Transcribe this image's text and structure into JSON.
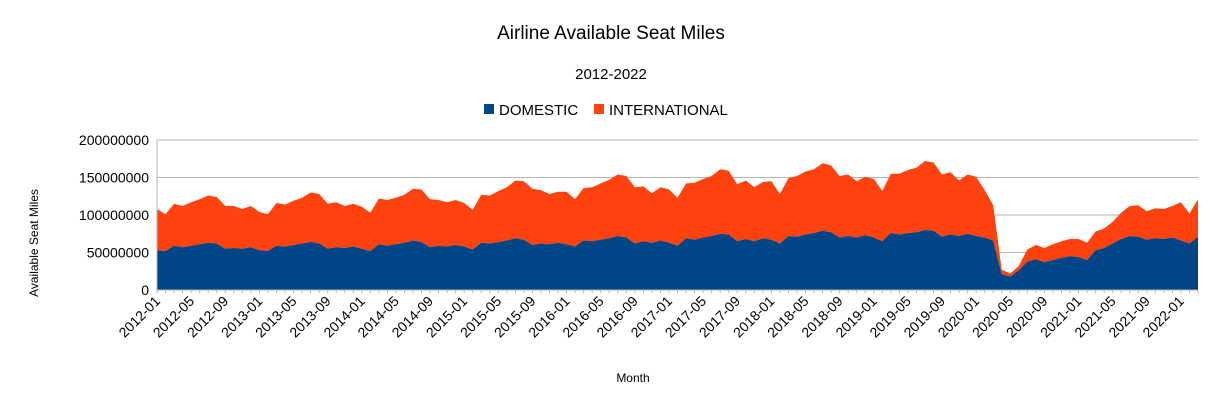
{
  "chart_data": {
    "type": "area",
    "stacked": true,
    "title": "Airline Available Seat Miles",
    "subtitle": "2012-2022",
    "xlabel": "Month",
    "ylabel": "Available Seat Miles",
    "ylim": [
      0,
      200000000
    ],
    "yticks": [
      "0",
      "50000000",
      "100000000",
      "150000000",
      "200000000"
    ],
    "grid": true,
    "legend": "top-center",
    "colors": {
      "DOMESTIC": "#004586",
      "INTERNATIONAL": "#ff420e",
      "grid": "#b3b3b3"
    },
    "x_tick_labels": [
      "2012-01",
      "2012-05",
      "2012-09",
      "2013-01",
      "2013-05",
      "2013-09",
      "2014-01",
      "2014-05",
      "2014-09",
      "2015-01",
      "2015-05",
      "2015-09",
      "2016-01",
      "2016-05",
      "2016-09",
      "2017-01",
      "2017-05",
      "2017-09",
      "2018-01",
      "2018-05",
      "2018-09",
      "2019-01",
      "2019-05",
      "2019-09",
      "2020-01",
      "2020-05",
      "2020-09",
      "2021-01",
      "2021-05",
      "2021-09",
      "2022-01"
    ],
    "x_start": "2012-01",
    "series": [
      {
        "name": "DOMESTIC",
        "values": [
          53000000,
          52000000,
          59000000,
          57000000,
          59000000,
          61000000,
          63000000,
          62000000,
          55000000,
          56000000,
          55000000,
          57000000,
          53000000,
          52000000,
          59000000,
          58000000,
          60000000,
          62000000,
          64000000,
          62000000,
          55000000,
          57000000,
          56000000,
          58000000,
          55000000,
          52000000,
          61000000,
          59000000,
          61000000,
          63000000,
          66000000,
          64000000,
          57000000,
          59000000,
          58000000,
          60000000,
          58000000,
          54000000,
          63000000,
          62000000,
          64000000,
          66000000,
          69000000,
          67000000,
          60000000,
          62000000,
          61000000,
          63000000,
          61000000,
          58000000,
          66000000,
          65000000,
          67000000,
          69000000,
          72000000,
          70000000,
          62000000,
          65000000,
          63000000,
          66000000,
          63000000,
          59000000,
          69000000,
          67000000,
          70000000,
          72000000,
          75000000,
          74000000,
          65000000,
          68000000,
          65000000,
          69000000,
          67000000,
          62000000,
          72000000,
          71000000,
          74000000,
          76000000,
          79000000,
          77000000,
          70000000,
          72000000,
          70000000,
          73000000,
          70000000,
          65000000,
          76000000,
          74000000,
          76000000,
          77000000,
          80000000,
          79000000,
          71000000,
          74000000,
          72000000,
          75000000,
          72000000,
          70000000,
          66000000,
          21000000,
          18000000,
          26000000,
          38000000,
          41000000,
          37000000,
          40000000,
          43000000,
          45000000,
          44000000,
          40000000,
          53000000,
          56000000,
          62000000,
          68000000,
          72000000,
          71000000,
          67000000,
          69000000,
          68000000,
          70000000,
          66000000,
          62000000,
          71000000
        ]
      },
      {
        "name": "INTERNATIONAL",
        "values": [
          55000000,
          49000000,
          56000000,
          55000000,
          58000000,
          60000000,
          63000000,
          62000000,
          57000000,
          56000000,
          53000000,
          55000000,
          51000000,
          49000000,
          57000000,
          56000000,
          59000000,
          61000000,
          66000000,
          66000000,
          60000000,
          60000000,
          56000000,
          57000000,
          56000000,
          51000000,
          61000000,
          61000000,
          62000000,
          64000000,
          69000000,
          70000000,
          64000000,
          61000000,
          59000000,
          60000000,
          58000000,
          53000000,
          64000000,
          64000000,
          68000000,
          71000000,
          77000000,
          78000000,
          75000000,
          71000000,
          67000000,
          68000000,
          70000000,
          63000000,
          70000000,
          72000000,
          75000000,
          78000000,
          82000000,
          82000000,
          75000000,
          73000000,
          66000000,
          71000000,
          71000000,
          64000000,
          73000000,
          76000000,
          78000000,
          80000000,
          86000000,
          85000000,
          76000000,
          78000000,
          72000000,
          75000000,
          78000000,
          66000000,
          77000000,
          81000000,
          84000000,
          85000000,
          90000000,
          89000000,
          82000000,
          82000000,
          75000000,
          78000000,
          78000000,
          67000000,
          79000000,
          81000000,
          84000000,
          86000000,
          92000000,
          91000000,
          83000000,
          83000000,
          74000000,
          79000000,
          79000000,
          63000000,
          47000000,
          6000000,
          4000000,
          6000000,
          16000000,
          19000000,
          19000000,
          21000000,
          22000000,
          23000000,
          24000000,
          23000000,
          25000000,
          26000000,
          29000000,
          35000000,
          40000000,
          42000000,
          38000000,
          40000000,
          40000000,
          42000000,
          51000000,
          40000000,
          50000000
        ]
      }
    ]
  }
}
